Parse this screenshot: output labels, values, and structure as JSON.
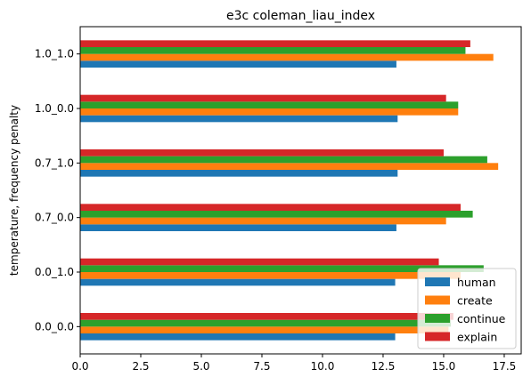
{
  "chart_data": {
    "type": "bar",
    "orientation": "horizontal",
    "title": "e3c coleman_liau_index",
    "xlabel": "",
    "ylabel": "temperature, frequency penalty",
    "categories": [
      "0.0_0.0",
      "0.0_1.0",
      "0.7_0.0",
      "0.7_1.0",
      "1.0_0.0",
      "1.0_1.0"
    ],
    "xlim": [
      0,
      18.2
    ],
    "xticks": [
      0.0,
      2.5,
      5.0,
      7.5,
      10.0,
      12.5,
      15.0,
      17.5
    ],
    "xtick_labels": [
      "0.0",
      "2.5",
      "5.0",
      "7.5",
      "10.0",
      "12.5",
      "15.0",
      "17.5"
    ],
    "series": [
      {
        "name": "human",
        "color": "#1f77b4",
        "values": [
          13.0,
          13.0,
          13.05,
          13.1,
          13.1,
          13.05
        ]
      },
      {
        "name": "create",
        "color": "#ff7f0e",
        "values": [
          15.2,
          15.7,
          15.1,
          17.25,
          15.6,
          17.05
        ]
      },
      {
        "name": "continue",
        "color": "#2ca02c",
        "values": [
          15.3,
          16.65,
          16.2,
          16.8,
          15.6,
          15.9
        ]
      },
      {
        "name": "explain",
        "color": "#d62728",
        "values": [
          15.4,
          14.8,
          15.7,
          15.0,
          15.1,
          16.1
        ]
      }
    ],
    "grid": false,
    "legend_position": "lower-right"
  }
}
